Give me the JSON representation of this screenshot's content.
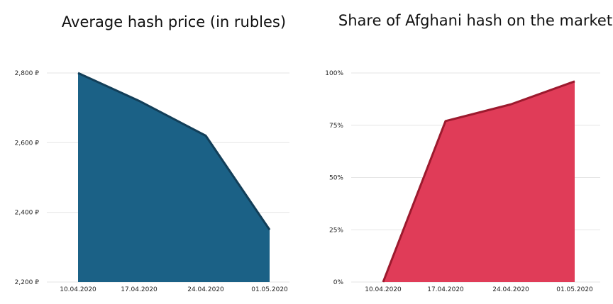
{
  "chart_data": [
    {
      "type": "area",
      "title": "Average hash price (in rubles)",
      "categories": [
        "10.04.2020",
        "17.04.2020",
        "24.04.2020",
        "01.05.2020"
      ],
      "x_points": [
        0,
        0.55,
        1.25,
        2,
        2.75,
        3
      ],
      "values": [
        2800,
        2720,
        2620,
        2350
      ],
      "series": [
        {
          "values": [
            2800,
            2720,
            2620,
            2350
          ],
          "color": "#1b6186",
          "stroke": "#123e58"
        }
      ],
      "y_ticks": [
        "2,200 ₽",
        "2,400 ₽",
        "2,600 ₽",
        "2,800 ₽"
      ],
      "ylim": [
        2200,
        2800
      ],
      "grid": true
    },
    {
      "type": "area",
      "title": "Share of Afghani hash on the market",
      "categories": [
        "10.04.2020",
        "17.04.2020",
        "24.04.2020",
        "01.05.2020"
      ],
      "values": [
        0,
        77,
        85,
        96
      ],
      "series": [
        {
          "values": [
            0,
            77,
            85,
            96
          ],
          "color": "#e03c58",
          "stroke": "#9c1a2e"
        }
      ],
      "y_ticks": [
        "0%",
        "25%",
        "50%",
        "75%",
        "100%"
      ],
      "ylim": [
        0,
        100
      ],
      "grid": true
    }
  ]
}
